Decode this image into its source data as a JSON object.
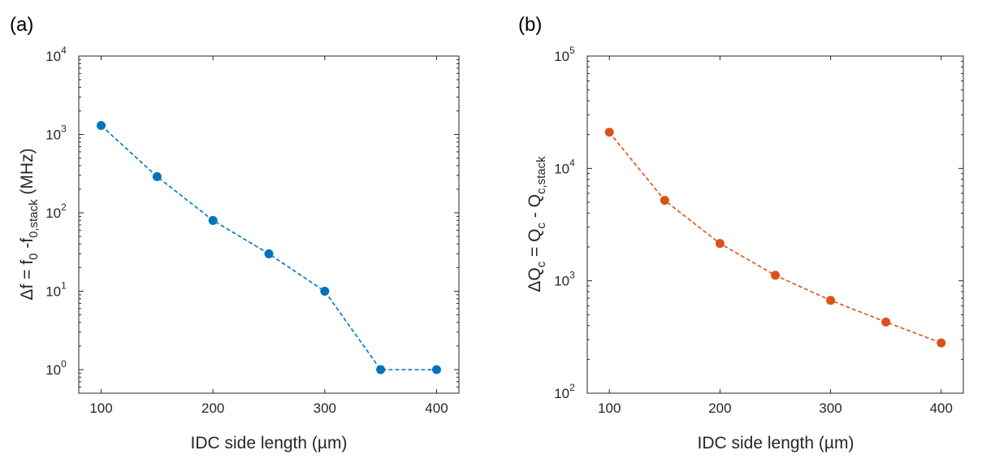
{
  "chart_data": [
    {
      "type": "line",
      "panel_label": "(a)",
      "xlabel": "IDC side length (µm)",
      "ylabel": {
        "prefix": "Δf = f",
        "sub1": "0",
        "mid": " -f",
        "sub2": "0,stack",
        "suffix": " (MHz)"
      },
      "y_scale": "log",
      "xlim": [
        80,
        420
      ],
      "ylim": [
        0.5,
        10000
      ],
      "x_ticks": [
        "100",
        "200",
        "300",
        "400"
      ],
      "y_ticks": [
        {
          "base": "10",
          "exp": "0"
        },
        {
          "base": "10",
          "exp": "1"
        },
        {
          "base": "10",
          "exp": "2"
        },
        {
          "base": "10",
          "exp": "3"
        },
        {
          "base": "10",
          "exp": "4"
        }
      ],
      "line_style": "dashed",
      "color": "#0072BD",
      "x": [
        100,
        150,
        200,
        250,
        300,
        350,
        400
      ],
      "y": [
        1300,
        290,
        80,
        30,
        10,
        1,
        1
      ]
    },
    {
      "type": "line",
      "panel_label": "(b)",
      "xlabel": "IDC side length (µm)",
      "ylabel": {
        "prefix": "ΔQ",
        "sub1": "c",
        "mid": " = Q",
        "sub2": "c",
        "mid2": " - Q",
        "sub3": "c,stack",
        "suffix": ""
      },
      "y_scale": "log",
      "xlim": [
        80,
        420
      ],
      "ylim": [
        100,
        100000
      ],
      "x_ticks": [
        "100",
        "200",
        "300",
        "400"
      ],
      "y_ticks": [
        {
          "base": "10",
          "exp": "2"
        },
        {
          "base": "10",
          "exp": "3"
        },
        {
          "base": "10",
          "exp": "4"
        },
        {
          "base": "10",
          "exp": "5"
        }
      ],
      "line_style": "dashed",
      "color": "#D95319",
      "x": [
        100,
        150,
        200,
        250,
        300,
        350,
        400
      ],
      "y": [
        21000,
        5200,
        2150,
        1120,
        670,
        430,
        280
      ]
    }
  ]
}
